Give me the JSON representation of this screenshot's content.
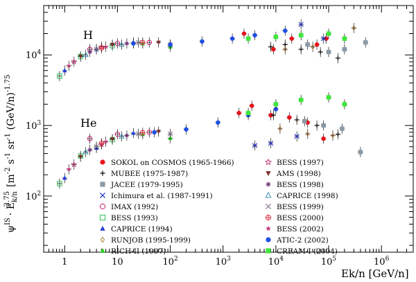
{
  "chart_data": {
    "type": "scatter",
    "title": "",
    "xlabel": "Ek/n  [GeV/n]",
    "ylabel": "ψᴵˢ · E_k/n^2.75  [m⁻² s⁻¹ sr⁻¹ (GeV/n)⁻¹·⁷⁵]",
    "ylabel_parts": {
      "psi": "ψ",
      "psi_sup": "IS",
      "dot": "· E",
      "e_sub": "k/n",
      "e_sup": "2.75",
      "units": "[m",
      "m_sup": "-2",
      "s": " s",
      "s_sup": "-1",
      "sr": " sr",
      "sr_sup": "-1",
      "gev": " (GeV/n)",
      "gev_sup": "-1.75"
    },
    "xscale": "log",
    "yscale": "log",
    "xlim": [
      0.4,
      4000000
    ],
    "ylim": [
      16,
      50000
    ],
    "x_ticks": [
      {
        "v": 1,
        "base": "1",
        "exp": ""
      },
      {
        "v": 10,
        "base": "10",
        "exp": ""
      },
      {
        "v": 100,
        "base": "10",
        "exp": "2"
      },
      {
        "v": 1000,
        "base": "10",
        "exp": "3"
      },
      {
        "v": 10000,
        "base": "10",
        "exp": "4"
      },
      {
        "v": 100000,
        "base": "10",
        "exp": "5"
      },
      {
        "v": 1000000,
        "base": "10",
        "exp": "6"
      }
    ],
    "y_ticks": [
      {
        "v": 100,
        "base": "10",
        "exp": "2"
      },
      {
        "v": 1000,
        "base": "10",
        "exp": "3"
      },
      {
        "v": 10000,
        "base": "10",
        "exp": "4"
      }
    ],
    "annotations": [
      {
        "text": "H",
        "x": 1.2,
        "y": 20000
      },
      {
        "text": "He",
        "x": 1.2,
        "y": 1000
      }
    ],
    "legend_position": "bottom-center",
    "series": [
      {
        "name": "SOKOL on COSMOS (1965-1966)",
        "marker": "circle-filled",
        "color": "#e8141c",
        "H": [
          [
            2500,
            20000
          ],
          [
            9000,
            12000
          ],
          [
            20000,
            17000
          ],
          [
            60000,
            14000
          ],
          [
            90000,
            17000
          ]
        ],
        "He": [
          [
            2000,
            1500
          ],
          [
            3500,
            1900
          ],
          [
            8000,
            1400
          ],
          [
            18000,
            1300
          ],
          [
            40000,
            1100
          ],
          [
            80000,
            650
          ]
        ]
      },
      {
        "name": "MUBEE (1975-1987)",
        "marker": "plus",
        "color": "#111111",
        "H": [
          [
            8000,
            13000
          ],
          [
            15000,
            14000
          ],
          [
            30000,
            12000
          ],
          [
            70000,
            11000
          ],
          [
            150000,
            9000
          ]
        ],
        "He": [
          [
            9000,
            1400
          ],
          [
            25000,
            1200
          ],
          [
            60000,
            1000
          ],
          [
            150000,
            750
          ]
        ]
      },
      {
        "name": "JACEE (1979-1995)",
        "marker": "square-filled",
        "color": "#8c9aa6",
        "H": [
          [
            40000,
            14000
          ],
          [
            100000,
            11000
          ],
          [
            200000,
            12000
          ],
          [
            500000,
            15000
          ]
        ],
        "He": [
          [
            35000,
            1150
          ],
          [
            80000,
            1000
          ],
          [
            180000,
            900
          ],
          [
            400000,
            420
          ]
        ]
      },
      {
        "name": "Ichimura et al. (1987-1991)",
        "marker": "x",
        "color": "#2030c8",
        "H": [
          [
            30000,
            27000
          ],
          [
            80000,
            17000
          ]
        ],
        "He": [
          [
            4000,
            520
          ],
          [
            8000,
            560
          ],
          [
            25000,
            700
          ]
        ]
      },
      {
        "name": "IMAX (1992)",
        "marker": "circle-open",
        "color": "#c41e6e",
        "H": [
          [
            3,
            12000
          ],
          [
            10,
            14500
          ],
          [
            40,
            15000
          ]
        ],
        "He": [
          [
            3,
            650
          ],
          [
            10,
            750
          ],
          [
            40,
            800
          ]
        ]
      },
      {
        "name": "BESS (1993)",
        "marker": "square-open",
        "color": "#2cbf5c",
        "H": [
          [
            0.8,
            5000
          ],
          [
            2,
            9500
          ],
          [
            8,
            13500
          ]
        ],
        "He": [
          [
            0.8,
            150
          ],
          [
            2,
            370
          ],
          [
            8,
            630
          ]
        ]
      },
      {
        "name": "CAPRICE (1994)",
        "marker": "triangle-filled",
        "color": "#1f3fd8",
        "H": [
          [
            1,
            6000
          ],
          [
            4,
            12000
          ],
          [
            20,
            15000
          ]
        ],
        "He": [
          [
            1,
            180
          ],
          [
            4,
            480
          ],
          [
            20,
            780
          ]
        ]
      },
      {
        "name": "RUNJOB (1995-1999)",
        "marker": "diamond-open",
        "color": "#b07a3a",
        "H": [
          [
            15000,
            12000
          ],
          [
            50000,
            13000
          ],
          [
            300000,
            24000
          ]
        ],
        "He": [
          [
            12000,
            900
          ],
          [
            40000,
            760
          ],
          [
            120000,
            720
          ]
        ]
      },
      {
        "name": "RICH-II (1997)",
        "marker": "triangle-filled",
        "color": "#28d020",
        "H": [
          [
            30,
            14500
          ],
          [
            100,
            13000
          ]
        ],
        "He": [
          [
            30,
            750
          ],
          [
            100,
            660
          ]
        ]
      },
      {
        "name": "BESS (1997)",
        "marker": "star-open",
        "color": "#c0407c",
        "H": [
          [
            1.5,
            8000
          ],
          [
            5,
            13000
          ]
        ],
        "He": [
          [
            1.5,
            280
          ],
          [
            5,
            540
          ]
        ]
      },
      {
        "name": "AMS (1998)",
        "marker": "triangle-down-filled",
        "color": "#7a2e2a",
        "H": [
          [
            2,
            9500
          ],
          [
            8,
            14000
          ],
          [
            60,
            15000
          ]
        ],
        "He": [
          [
            2,
            360
          ],
          [
            8,
            640
          ],
          [
            60,
            820
          ]
        ]
      },
      {
        "name": "BESS (1998)",
        "marker": "asterisk",
        "color": "#6a2a70",
        "H": [
          [
            3,
            11000
          ],
          [
            15,
            14500
          ]
        ],
        "He": [
          [
            3,
            450
          ],
          [
            15,
            720
          ]
        ]
      },
      {
        "name": "CAPRICE (1998)",
        "marker": "triangle-open",
        "color": "#3f8fb0",
        "H": [
          [
            2.5,
            10000
          ],
          [
            12,
            14000
          ]
        ],
        "He": [
          [
            2.5,
            420
          ],
          [
            12,
            700
          ]
        ]
      },
      {
        "name": "BESS (1999)",
        "marker": "x",
        "color": "#8a7a90",
        "H": [
          [
            4,
            12000
          ],
          [
            25,
            15000
          ],
          [
            100,
            14000
          ]
        ],
        "He": [
          [
            4,
            500
          ],
          [
            25,
            760
          ],
          [
            100,
            760
          ]
        ]
      },
      {
        "name": "BESS (2000)",
        "marker": "circle-cross",
        "color": "#d83040",
        "H": [
          [
            5,
            12500
          ],
          [
            30,
            15000
          ]
        ],
        "He": [
          [
            5,
            560
          ],
          [
            30,
            790
          ]
        ]
      },
      {
        "name": "BESS (2002)",
        "marker": "star-filled",
        "color": "#c23c7a",
        "H": [
          [
            1.2,
            7000
          ],
          [
            6,
            13000
          ]
        ],
        "He": [
          [
            1.2,
            240
          ],
          [
            6,
            590
          ]
        ]
      },
      {
        "name": "ATIC-2 (2002)",
        "marker": "circle-filled",
        "color": "#1f4fe6",
        "H": [
          [
            20,
            14500
          ],
          [
            100,
            14000
          ],
          [
            400,
            15500
          ],
          [
            1500,
            17000
          ],
          [
            4000,
            19000
          ],
          [
            15000,
            22000
          ]
        ],
        "He": [
          [
            50,
            800
          ],
          [
            200,
            880
          ],
          [
            800,
            1100
          ],
          [
            3000,
            1400
          ],
          [
            10000,
            1700
          ]
        ]
      },
      {
        "name": "CREAM-I (2004)",
        "marker": "square-filled",
        "color": "#3fe83a",
        "H": [
          [
            3000,
            17000
          ],
          [
            10000,
            18000
          ],
          [
            30000,
            19000
          ],
          [
            100000,
            20000
          ],
          [
            200000,
            17000
          ]
        ],
        "He": [
          [
            3000,
            1500
          ],
          [
            10000,
            2000
          ],
          [
            30000,
            2300
          ],
          [
            100000,
            2500
          ],
          [
            200000,
            2000
          ]
        ]
      }
    ]
  }
}
